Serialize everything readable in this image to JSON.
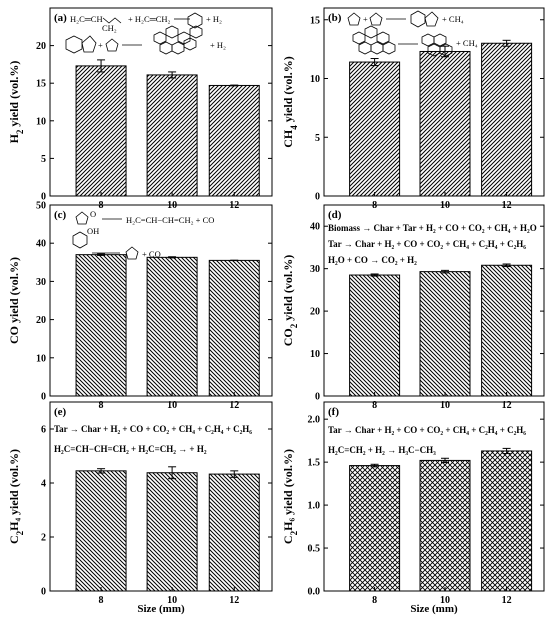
{
  "shared": {
    "xlabel": "Size (mm)"
  },
  "chart_data": [
    {
      "type": "bar",
      "panel": "(a)",
      "ylabel_main": "H",
      "ylabel_sub": "2",
      "ylabel_rest": " yield (vol.%)",
      "categories": [
        "8",
        "10",
        "12"
      ],
      "values": [
        17.3,
        16.1,
        14.7
      ],
      "errors": [
        0.8,
        0.4,
        0.05
      ],
      "ylim": [
        0,
        25
      ],
      "yticks": [
        0,
        5,
        10,
        15,
        20
      ],
      "pattern": "diag-up",
      "reactions": [
        "+ H₂",
        "+ H₂"
      ]
    },
    {
      "type": "bar",
      "panel": "(b)",
      "ylabel_main": "CH",
      "ylabel_sub": "4",
      "ylabel_rest": " yield (vol.%)",
      "categories": [
        "8",
        "10",
        "12"
      ],
      "values": [
        11.4,
        12.3,
        13.0
      ],
      "errors": [
        0.3,
        0.45,
        0.25
      ],
      "ylim": [
        0,
        16
      ],
      "yticks": [
        0,
        5,
        10,
        15
      ],
      "pattern": "diag-up",
      "reactions": [
        "+ CH₄",
        "+ CH₄"
      ]
    },
    {
      "type": "bar",
      "panel": "(c)",
      "ylabel_main": "CO",
      "ylabel_sub": "",
      "ylabel_rest": " yield (vol.%)",
      "categories": [
        "8",
        "10",
        "12"
      ],
      "values": [
        37.0,
        36.3,
        35.5
      ],
      "errors": [
        0.2,
        0.15,
        0.05
      ],
      "ylim": [
        0,
        50
      ],
      "yticks": [
        0,
        10,
        20,
        30,
        40,
        50
      ],
      "pattern": "diag-down",
      "reactions": [
        "H₂C=CH−CH=CH₂ + CO",
        "+ CO"
      ]
    },
    {
      "type": "bar",
      "panel": "(d)",
      "ylabel_main": "CO",
      "ylabel_sub": "2",
      "ylabel_rest": " yield (vol.%)",
      "categories": [
        "8",
        "10",
        "12"
      ],
      "values": [
        28.5,
        29.3,
        30.8
      ],
      "errors": [
        0.25,
        0.3,
        0.3
      ],
      "ylim": [
        0,
        45
      ],
      "yticks": [
        0,
        10,
        20,
        30,
        40
      ],
      "pattern": "diag-down",
      "reactions": [
        "Biomass → Char + Tar + H₂ + CO + CO₂ + CH₄ + H₂O",
        "Tar → Char + H₂ + CO + CO₂ + CH₄ + C₂H₄ + C₂H₆",
        "H₂O + CO → CO₂ + H₂"
      ]
    },
    {
      "type": "bar",
      "panel": "(e)",
      "ylabel_main": "C",
      "ylabel_sub": "2",
      "ylabel_rest": "H₄ yield (vol.%)",
      "categories": [
        "8",
        "10",
        "12"
      ],
      "values": [
        4.45,
        4.38,
        4.33
      ],
      "errors": [
        0.08,
        0.22,
        0.12
      ],
      "ylim": [
        0,
        7
      ],
      "yticks": [
        0,
        2,
        4,
        6
      ],
      "pattern": "diag-down",
      "reactions": [
        "Tar → Char + H₂ + CO + CO₂ + CH₄ + C₂H₄ + C₂H₆",
        "H₂C=CH−CH=CH₂ + H₂C=CH₂ → + H₂"
      ]
    },
    {
      "type": "bar",
      "panel": "(f)",
      "ylabel_main": "C",
      "ylabel_sub": "2",
      "ylabel_rest": "H₆ yield (vol.%)",
      "categories": [
        "8",
        "10",
        "12"
      ],
      "values": [
        1.46,
        1.52,
        1.63
      ],
      "errors": [
        0.015,
        0.025,
        0.03
      ],
      "ylim": [
        0,
        2.2
      ],
      "yticks": [
        0.0,
        0.5,
        1.0,
        1.5,
        2.0
      ],
      "ytick_decimals": 1,
      "pattern": "cross",
      "reactions": [
        "Tar → Char + H₂ + CO + CO₂ + CH₄ + C₂H₄ + C₂H₆",
        "H₂C=CH₂ + H₂ → H₃C−CH₃"
      ]
    }
  ]
}
